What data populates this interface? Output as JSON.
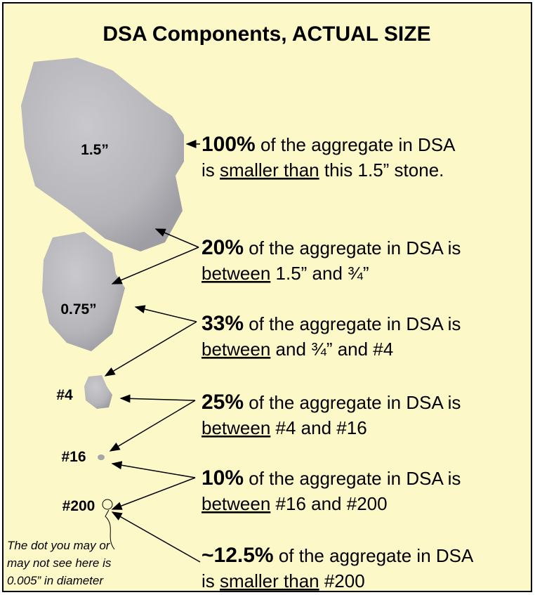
{
  "title": "DSA Components, ACTUAL SIZE",
  "stones": [
    {
      "label": "1.5”"
    },
    {
      "label": "0.75”"
    },
    {
      "label": "#4"
    },
    {
      "label": "#16"
    },
    {
      "label": "#200"
    }
  ],
  "statements": [
    {
      "percent": "100%",
      "line1": " of the aggregate in DSA",
      "line2_pre": "is ",
      "line2_underlined": "smaller than",
      "line2_post": " this 1.5” stone."
    },
    {
      "percent": "20%",
      "line1": " of the aggregate in DSA is",
      "line2_underlined": "between",
      "line2_post": " 1.5” and ¾”"
    },
    {
      "percent": "33%",
      "line1": " of the aggregate in DSA is",
      "line2_underlined": "between",
      "line2_post": " and ¾” and #4"
    },
    {
      "percent": "25%",
      "line1": " of the aggregate in DSA is",
      "line2_underlined": "between",
      "line2_post": "  #4 and #16"
    },
    {
      "percent": "10%",
      "line1": " of the aggregate in DSA is",
      "line2_underlined": "between",
      "line2_post": "  #16 and #200"
    },
    {
      "percent": "~12.5%",
      "line1": " of the aggregate in DSA",
      "line2_pre": "is ",
      "line2_underlined": "smaller than",
      "line2_post": " #200"
    }
  ],
  "note": {
    "lines": [
      "The dot you may or",
      "may not see here is",
      "0.005” in diameter"
    ]
  }
}
